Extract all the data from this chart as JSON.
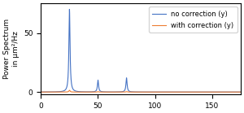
{
  "title": "",
  "ylabel": "Power Spectrum\nin μm²/Hz",
  "xlabel": "",
  "xlim": [
    0,
    175
  ],
  "ylim": [
    -2,
    75
  ],
  "yticks": [
    0,
    50
  ],
  "xticks": [
    0,
    50,
    100,
    150
  ],
  "peak1_x": 25,
  "peak1_y_blue": 70,
  "peak1_y_orange": 1.5,
  "peak2_x": 50,
  "peak2_y_blue": 10,
  "peak2_y_orange": 0.3,
  "peak3_x": 75,
  "peak3_y_blue": 12,
  "peak3_y_orange": 0.3,
  "color_blue": "#4472C4",
  "color_orange": "#ED7D31",
  "legend_labels": [
    "no correction (y)",
    "with correction (y)"
  ],
  "figsize": [
    3.0,
    1.39
  ],
  "dpi": 100
}
